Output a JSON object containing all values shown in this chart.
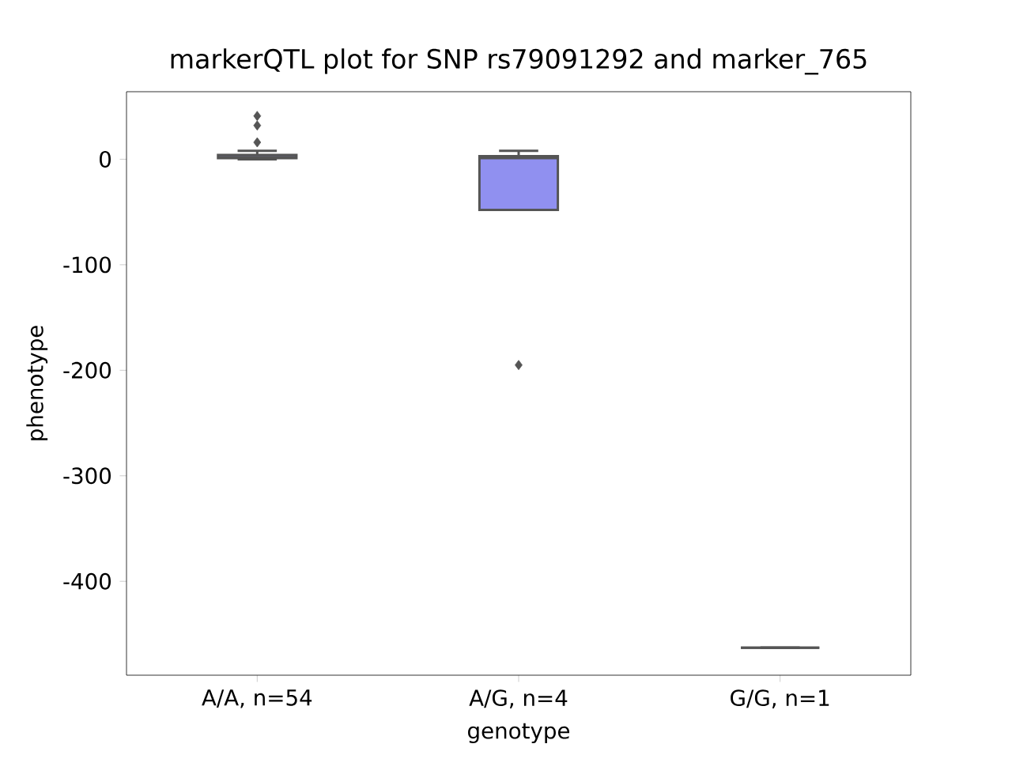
{
  "chart_data": {
    "type": "box",
    "title": "markerQTL plot for SNP rs79091292 and marker_765",
    "xlabel": "genotype",
    "ylabel": "phenotype",
    "categories": [
      "A/A, n=54",
      "A/G, n=4",
      "G/G, n=1"
    ],
    "colors": [
      "#9090f0",
      "#9090f0",
      "#555555"
    ],
    "boxes": [
      {
        "low": 0,
        "q1": 1,
        "median": 2,
        "q3": 4,
        "high": 8,
        "outliers": [
          16,
          32,
          41
        ]
      },
      {
        "low": 1,
        "q1": -48,
        "median": 1,
        "q3": 3,
        "high": 8,
        "outliers": [
          -195
        ]
      },
      {
        "low": -463,
        "q1": -463,
        "median": -463,
        "q3": -463,
        "high": -463
      }
    ],
    "ylim": [
      -489,
      64
    ],
    "yticks": [
      -400,
      -300,
      -200,
      -100,
      0
    ]
  }
}
